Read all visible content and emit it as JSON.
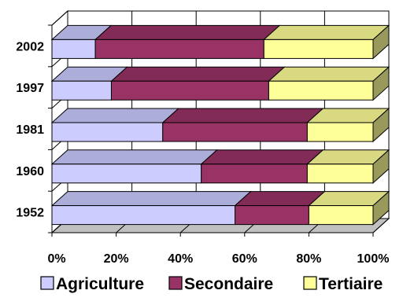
{
  "chart_data": {
    "type": "bar",
    "orientation": "horizontal",
    "stacked": "percent",
    "style": "3d",
    "categories": [
      "2002",
      "1997",
      "1981",
      "1960",
      "1952"
    ],
    "series": [
      {
        "name": "Agriculture",
        "values": [
          13.5,
          18.5,
          34.5,
          46.5,
          57
        ],
        "color": "#ccccff"
      },
      {
        "name": "Secondaire",
        "values": [
          52.5,
          49,
          45,
          33,
          23
        ],
        "color": "#993366"
      },
      {
        "name": "Tertiaire",
        "values": [
          34,
          32.5,
          20.5,
          20.5,
          20
        ],
        "color": "#ffff99"
      }
    ],
    "x_ticks": [
      "0%",
      "20%",
      "40%",
      "60%",
      "80%",
      "100%"
    ],
    "xlim": [
      0,
      100
    ],
    "grid": true,
    "legend_position": "bottom"
  }
}
